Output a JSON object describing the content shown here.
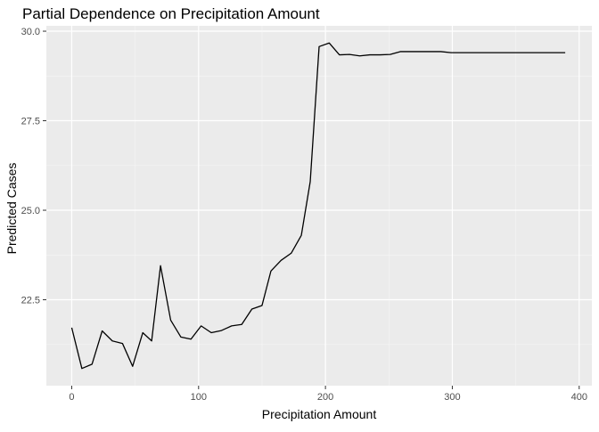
{
  "chart_data": {
    "type": "line",
    "title": "Partial Dependence on Precipitation Amount",
    "xlabel": "Precipitation Amount",
    "ylabel": "Predicted Cases",
    "xlim": [
      -20,
      410
    ],
    "ylim": [
      20.1,
      30.15
    ],
    "xticks": [
      0,
      100,
      200,
      300,
      400
    ],
    "xtick_labels": [
      "0",
      "100",
      "200",
      "300",
      "400"
    ],
    "yticks": [
      22.5,
      25.0,
      27.5,
      30.0
    ],
    "ytick_labels": [
      "22.5",
      "25.0",
      "27.5",
      "30.0"
    ],
    "grid": true,
    "series": [
      {
        "color": "#000000",
        "x": [
          0,
          8,
          16,
          24,
          32,
          40,
          48,
          56,
          63,
          70,
          78,
          86,
          94,
          102,
          110,
          118,
          126,
          134,
          142,
          150,
          157,
          165,
          173,
          181,
          188,
          195,
          203,
          211,
          219,
          227,
          235,
          243,
          251,
          259,
          267,
          275,
          283,
          291,
          299,
          307,
          315,
          323,
          331,
          339,
          347,
          355,
          363,
          371,
          379,
          389
        ],
        "y": [
          21.72,
          20.58,
          20.7,
          21.63,
          21.35,
          21.28,
          20.64,
          21.58,
          21.35,
          23.45,
          21.93,
          21.46,
          21.4,
          21.77,
          21.58,
          21.64,
          21.77,
          21.81,
          22.24,
          22.34,
          23.3,
          23.6,
          23.8,
          24.3,
          25.8,
          29.57,
          29.67,
          29.34,
          29.35,
          29.31,
          29.34,
          29.34,
          29.35,
          29.43,
          29.43,
          29.43,
          29.43,
          29.43,
          29.4,
          29.4,
          29.4,
          29.4,
          29.4,
          29.4,
          29.4,
          29.4,
          29.4,
          29.4,
          29.4,
          29.4
        ]
      }
    ]
  }
}
